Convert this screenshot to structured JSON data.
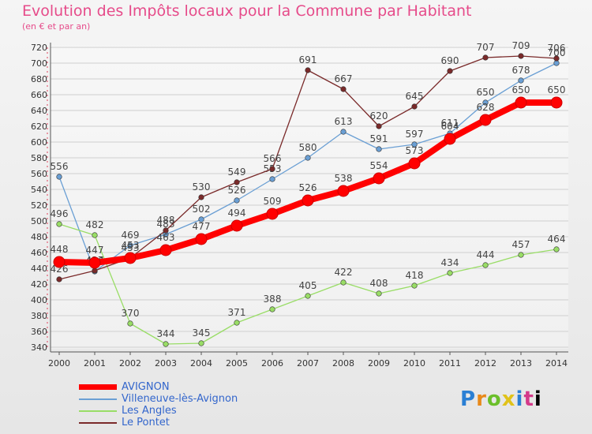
{
  "header": {
    "title": "Evolution des Impôts locaux pour la Commune par Habitant",
    "subtitle": "(en € et par an)"
  },
  "logo": {
    "letters": [
      "P",
      "r",
      "o",
      "x",
      "i",
      "t",
      "i"
    ]
  },
  "chart_data": {
    "type": "line",
    "x": [
      "2000",
      "2001",
      "2002",
      "2003",
      "2004",
      "2005",
      "2006",
      "2007",
      "2008",
      "2009",
      "2010",
      "2011",
      "2012",
      "2013",
      "2014"
    ],
    "ylim": [
      340,
      720
    ],
    "yticks": [
      340,
      360,
      380,
      400,
      420,
      440,
      460,
      480,
      500,
      520,
      540,
      560,
      580,
      600,
      620,
      640,
      660,
      680,
      700,
      720
    ],
    "grid": true,
    "legend_position": "bottom-left",
    "series": [
      {
        "name": "AVIGNON",
        "color": "#ff0000",
        "values": [
          448,
          447,
          453,
          463,
          477,
          494,
          509,
          526,
          538,
          554,
          573,
          604,
          628,
          650,
          650
        ]
      },
      {
        "name": "Villeneuve-lès-Avignon",
        "color": "#6a9fd4",
        "values": [
          556,
          436,
          469,
          483,
          502,
          526,
          553,
          580,
          613,
          591,
          597,
          611,
          650,
          678,
          700
        ]
      },
      {
        "name": "Les Angles",
        "color": "#99dd66",
        "values": [
          496,
          482,
          370,
          344,
          345,
          371,
          388,
          405,
          422,
          408,
          418,
          434,
          444,
          457,
          464
        ]
      },
      {
        "name": "Le Pontet",
        "color": "#7a2a2a",
        "values": [
          426,
          437,
          453,
          488,
          530,
          549,
          566,
          691,
          667,
          620,
          645,
          690,
          707,
          709,
          706
        ]
      }
    ]
  }
}
